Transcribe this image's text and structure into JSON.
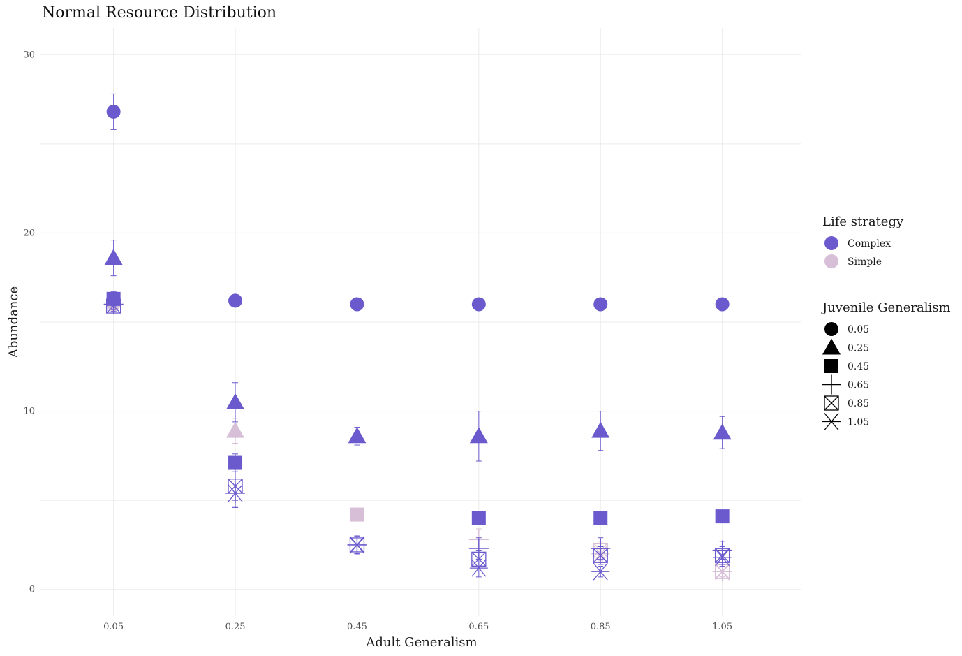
{
  "chart_data": {
    "type": "scatter",
    "title": "Normal Resource Distribution",
    "xlabel": "Adult Generalism",
    "ylabel": "Abundance",
    "categories": [
      "0.05",
      "0.25",
      "0.45",
      "0.65",
      "0.85",
      "1.05"
    ],
    "ylim": [
      -1.5,
      31.5
    ],
    "yticks": [
      0,
      10,
      20,
      30
    ],
    "grid": true,
    "error_bars": true,
    "legend": {
      "position": "right",
      "color": {
        "title": "Life strategy",
        "entries": [
          {
            "label": "Complex",
            "color": "#6a5acd"
          },
          {
            "label": "Simple",
            "color": "#d8bfd8"
          }
        ]
      },
      "shape": {
        "title": "Juvenile Generalism",
        "entries": [
          {
            "label": "0.05",
            "shape": "circle"
          },
          {
            "label": "0.25",
            "shape": "triangle"
          },
          {
            "label": "0.45",
            "shape": "square"
          },
          {
            "label": "0.65",
            "shape": "plus"
          },
          {
            "label": "0.85",
            "shape": "square-x"
          },
          {
            "label": "1.05",
            "shape": "asterisk"
          }
        ]
      }
    },
    "series": [
      {
        "strategy": "Complex",
        "juvenile": "0.05",
        "values": [
          26.8,
          16.2,
          16.0,
          16.0,
          16.0,
          16.0
        ],
        "errors": [
          1.0,
          0.3,
          0.15,
          0.15,
          0.15,
          0.15
        ]
      },
      {
        "strategy": "Complex",
        "juvenile": "0.25",
        "values": [
          18.6,
          10.5,
          8.6,
          8.6,
          8.9,
          8.8
        ],
        "errors": [
          1.0,
          1.1,
          0.5,
          1.4,
          1.1,
          0.9
        ]
      },
      {
        "strategy": "Complex",
        "juvenile": "0.45",
        "values": [
          16.3,
          7.1,
          null,
          4.0,
          4.0,
          4.1
        ],
        "errors": [
          0.4,
          0.5,
          null,
          0.15,
          0.2,
          0.15
        ]
      },
      {
        "strategy": "Complex",
        "juvenile": "0.65",
        "values": [
          16.0,
          5.4,
          2.5,
          2.3,
          2.3,
          2.2
        ],
        "errors": [
          0.3,
          0.8,
          0.5,
          0.6,
          0.6,
          0.5
        ]
      },
      {
        "strategy": "Complex",
        "juvenile": "0.85",
        "values": [
          15.9,
          5.8,
          2.5,
          1.7,
          1.9,
          1.9
        ],
        "errors": [
          0.3,
          0.8,
          0.5,
          0.5,
          0.5,
          0.5
        ]
      },
      {
        "strategy": "Complex",
        "juvenile": "1.05",
        "values": [
          null,
          5.4,
          2.5,
          1.2,
          1.0,
          1.8
        ],
        "errors": [
          null,
          0.8,
          0.5,
          0.5,
          0.3,
          0.5
        ]
      },
      {
        "strategy": "Simple",
        "juvenile": "0.05",
        "values": [
          16.0,
          null,
          null,
          null,
          null,
          null
        ],
        "errors": [
          0.3,
          null,
          null,
          null,
          null,
          null
        ]
      },
      {
        "strategy": "Simple",
        "juvenile": "0.25",
        "values": [
          null,
          8.9,
          null,
          null,
          null,
          null
        ],
        "errors": [
          null,
          0.7,
          null,
          null,
          null,
          null
        ]
      },
      {
        "strategy": "Simple",
        "juvenile": "0.45",
        "values": [
          null,
          null,
          4.2,
          null,
          null,
          null
        ],
        "errors": [
          null,
          null,
          0.3,
          null,
          null,
          null
        ]
      },
      {
        "strategy": "Simple",
        "juvenile": "0.65",
        "values": [
          null,
          null,
          null,
          2.8,
          2.3,
          1.0
        ],
        "errors": [
          null,
          null,
          null,
          0.6,
          0.4,
          0.3
        ]
      },
      {
        "strategy": "Simple",
        "juvenile": "0.85",
        "values": [
          null,
          null,
          null,
          null,
          2.2,
          1.0
        ],
        "errors": [
          null,
          null,
          null,
          null,
          0.4,
          0.3
        ]
      },
      {
        "strategy": "Simple",
        "juvenile": "1.05",
        "values": [
          null,
          null,
          null,
          null,
          2.0,
          1.0
        ],
        "errors": [
          null,
          null,
          null,
          null,
          0.4,
          0.3
        ]
      }
    ]
  }
}
